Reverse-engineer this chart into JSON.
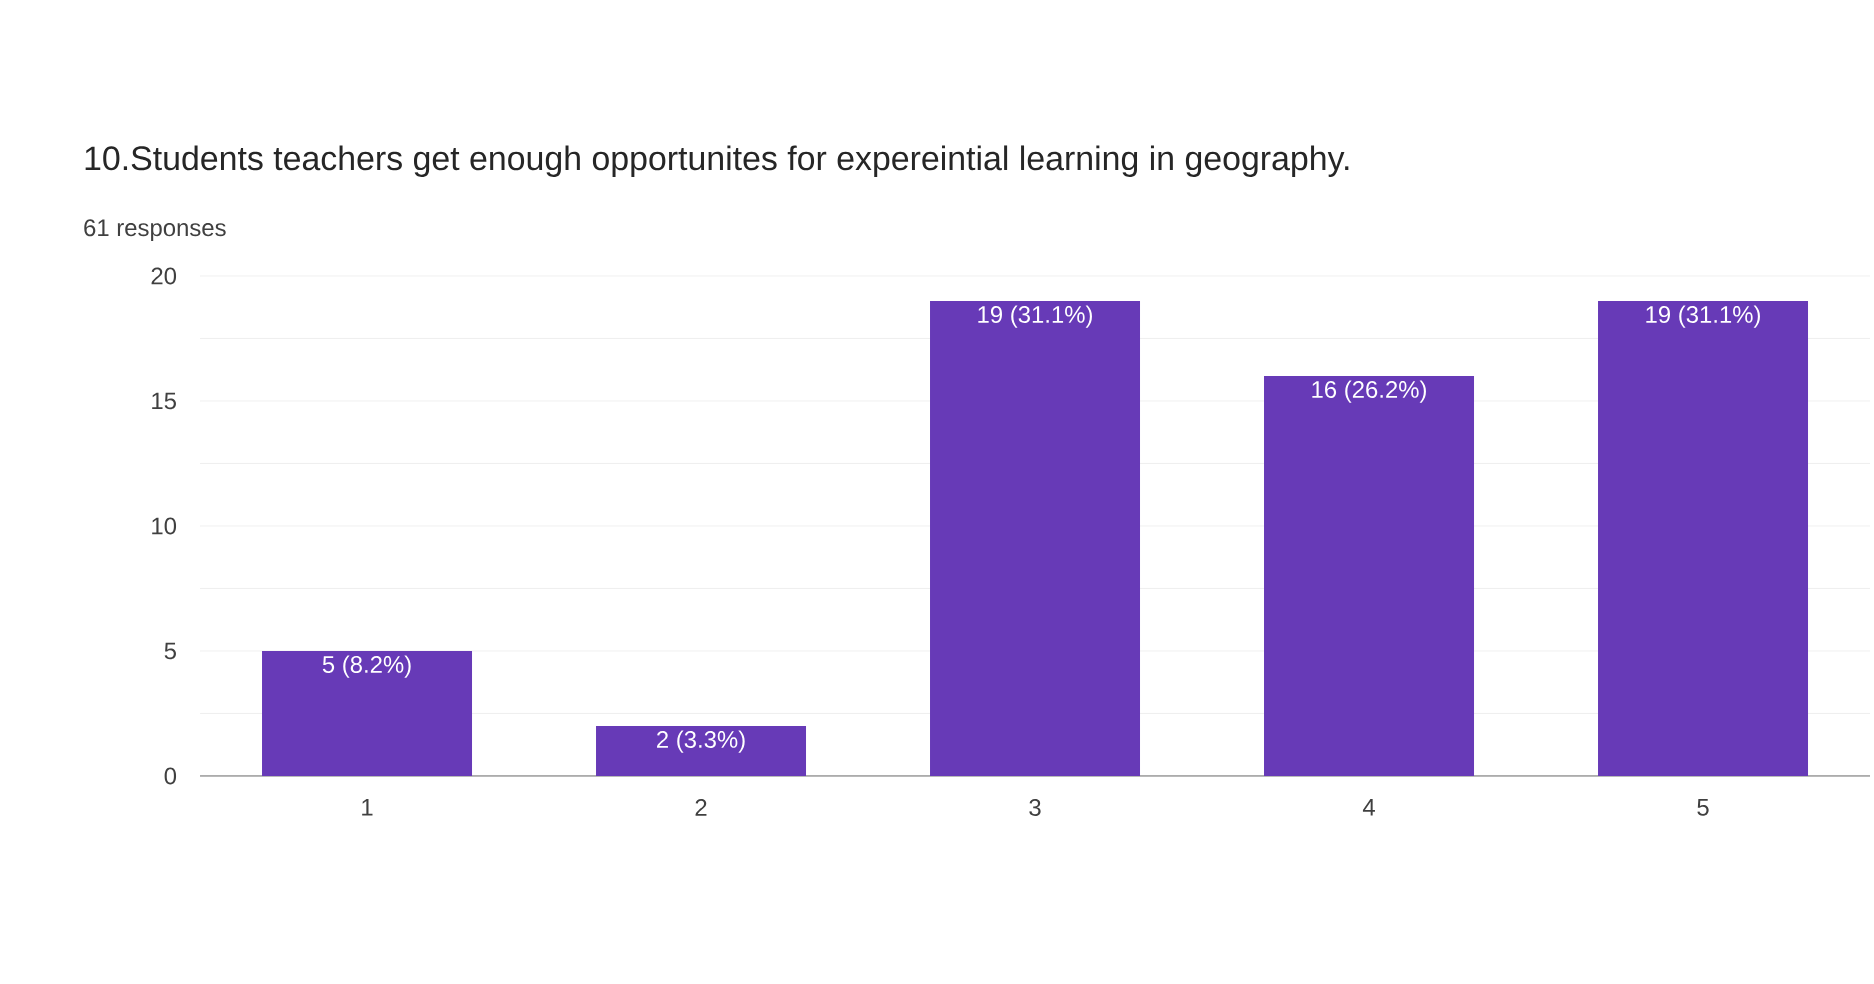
{
  "chart_data": {
    "type": "bar",
    "title": "10.Students teachers get enough opportunites for expereintial learning in geography.",
    "subtitle": "61 responses",
    "categories": [
      "1",
      "2",
      "3",
      "4",
      "5"
    ],
    "values": [
      5,
      2,
      19,
      16,
      19
    ],
    "value_labels": [
      "5 (8.2%)",
      "2 (3.3%)",
      "19 (31.1%)",
      "16 (26.2%)",
      "19 (31.1%)"
    ],
    "color": "#673ab7",
    "ylim": [
      0,
      20
    ],
    "yticks": [
      0,
      {
        "value": 2.5,
        "label": null
      },
      5,
      {
        "value": 7.5,
        "label": null
      },
      10,
      {
        "value": 12.5,
        "label": null
      },
      15,
      {
        "value": 17.5,
        "label": null
      },
      20
    ],
    "grid": "y"
  }
}
